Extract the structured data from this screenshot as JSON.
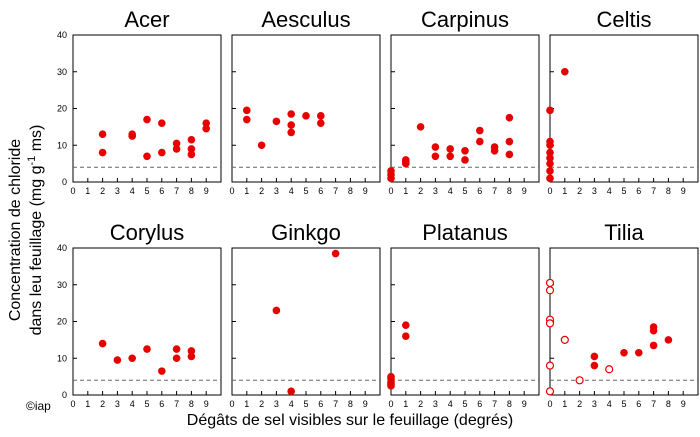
{
  "figure": {
    "ylabel_line1": "Concentration de chloride",
    "ylabel_line2_pre": "dans leu feuillage (mg g",
    "ylabel_line2_sup": "-1",
    "ylabel_line2_post": " ms)",
    "xlabel": "Dégâts de sel visibles sur le feuillage (degrés)",
    "credit": "©iap",
    "marker_color": "#e60000",
    "reference_line_color": "#666666"
  },
  "chart_data": [
    {
      "type": "scatter",
      "title": "Acer",
      "xlim": [
        0,
        10
      ],
      "ylim": [
        0,
        40
      ],
      "xticks": [
        0,
        1,
        2,
        3,
        4,
        5,
        6,
        7,
        8,
        9
      ],
      "yticks": [
        0,
        10,
        20,
        30,
        40
      ],
      "reference_line": 4,
      "points": [
        [
          2,
          13
        ],
        [
          2,
          8
        ],
        [
          4,
          13
        ],
        [
          4,
          12.5
        ],
        [
          5,
          17
        ],
        [
          5,
          7
        ],
        [
          6,
          16
        ],
        [
          6,
          8
        ],
        [
          7,
          10.5
        ],
        [
          7,
          9
        ],
        [
          8,
          11.5
        ],
        [
          8,
          9
        ],
        [
          8,
          7.5
        ],
        [
          9,
          16
        ],
        [
          9,
          14.5
        ]
      ]
    },
    {
      "type": "scatter",
      "title": "Aesculus",
      "xlim": [
        0,
        10
      ],
      "ylim": [
        0,
        40
      ],
      "xticks": [
        0,
        1,
        2,
        3,
        4,
        5,
        6,
        7,
        8,
        9
      ],
      "yticks": [
        0,
        10,
        20,
        30,
        40
      ],
      "reference_line": 4,
      "points": [
        [
          1,
          19.5
        ],
        [
          1,
          17
        ],
        [
          2,
          10
        ],
        [
          3,
          16.5
        ],
        [
          4,
          18.5
        ],
        [
          4,
          15.5
        ],
        [
          4,
          13.5
        ],
        [
          5,
          18
        ],
        [
          6,
          18
        ],
        [
          6,
          16
        ]
      ]
    },
    {
      "type": "scatter",
      "title": "Carpinus",
      "xlim": [
        0,
        10
      ],
      "ylim": [
        0,
        40
      ],
      "xticks": [
        0,
        1,
        2,
        3,
        4,
        5,
        6,
        7,
        8,
        9
      ],
      "yticks": [
        0,
        10,
        20,
        30,
        40
      ],
      "reference_line": 4,
      "points": [
        [
          0,
          3
        ],
        [
          0,
          2
        ],
        [
          0,
          1
        ],
        [
          1,
          6
        ],
        [
          1,
          5.5
        ],
        [
          1,
          5
        ],
        [
          2,
          15
        ],
        [
          3,
          9.5
        ],
        [
          3,
          7
        ],
        [
          4,
          9
        ],
        [
          4,
          7
        ],
        [
          5,
          8.5
        ],
        [
          5,
          6
        ],
        [
          6,
          14
        ],
        [
          6,
          11
        ],
        [
          7,
          9.5
        ],
        [
          7,
          8.5
        ],
        [
          8,
          17.5
        ],
        [
          8,
          11
        ],
        [
          8,
          7.5
        ]
      ]
    },
    {
      "type": "scatter",
      "title": "Celtis",
      "xlim": [
        0,
        10
      ],
      "ylim": [
        0,
        40
      ],
      "xticks": [
        0,
        1,
        2,
        3,
        4,
        5,
        6,
        7,
        8,
        9
      ],
      "yticks": [
        0,
        10,
        20,
        30,
        40
      ],
      "reference_line": 4,
      "points": [
        [
          0,
          19.5
        ],
        [
          0,
          11
        ],
        [
          0,
          10
        ],
        [
          0,
          8
        ],
        [
          0,
          6.5
        ],
        [
          0,
          5
        ],
        [
          0,
          3
        ],
        [
          0,
          1
        ],
        [
          1,
          30
        ]
      ]
    },
    {
      "type": "scatter",
      "title": "Corylus",
      "xlim": [
        0,
        10
      ],
      "ylim": [
        0,
        40
      ],
      "xticks": [
        0,
        1,
        2,
        3,
        4,
        5,
        6,
        7,
        8,
        9
      ],
      "yticks": [
        0,
        10,
        20,
        30,
        40
      ],
      "reference_line": 4,
      "points": [
        [
          2,
          14
        ],
        [
          3,
          9.5
        ],
        [
          4,
          10
        ],
        [
          5,
          12.5
        ],
        [
          6,
          6.5
        ],
        [
          7,
          12.5
        ],
        [
          7,
          10
        ],
        [
          8,
          12
        ],
        [
          8,
          10.5
        ]
      ]
    },
    {
      "type": "scatter",
      "title": "Ginkgo",
      "xlim": [
        0,
        10
      ],
      "ylim": [
        0,
        40
      ],
      "xticks": [
        0,
        1,
        2,
        3,
        4,
        5,
        6,
        7,
        8,
        9
      ],
      "yticks": [
        0,
        10,
        20,
        30,
        40
      ],
      "reference_line": 4,
      "points": [
        [
          3,
          23
        ],
        [
          4,
          1
        ],
        [
          7,
          38.5
        ]
      ]
    },
    {
      "type": "scatter",
      "title": "Platanus",
      "xlim": [
        0,
        10
      ],
      "ylim": [
        0,
        40
      ],
      "xticks": [
        0,
        1,
        2,
        3,
        4,
        5,
        6,
        7,
        8,
        9
      ],
      "yticks": [
        0,
        10,
        20,
        30,
        40
      ],
      "reference_line": 4,
      "points": [
        [
          0,
          5
        ],
        [
          0,
          4.5
        ],
        [
          0,
          3.5
        ],
        [
          0,
          3
        ],
        [
          0,
          2.5
        ],
        [
          1,
          19
        ],
        [
          1,
          16
        ]
      ]
    },
    {
      "type": "scatter",
      "title": "Tilia",
      "xlim": [
        0,
        10
      ],
      "ylim": [
        0,
        40
      ],
      "xticks": [
        0,
        1,
        2,
        3,
        4,
        5,
        6,
        7,
        8,
        9
      ],
      "yticks": [
        0,
        10,
        20,
        30,
        40
      ],
      "reference_line": 4,
      "points": [
        [
          3,
          10.5
        ],
        [
          3,
          8
        ],
        [
          5,
          11.5
        ],
        [
          6,
          11.5
        ],
        [
          7,
          18.5
        ],
        [
          7,
          17.5
        ],
        [
          7,
          13.5
        ],
        [
          8,
          15
        ]
      ],
      "open_points": [
        [
          0,
          30.5
        ],
        [
          0,
          28.5
        ],
        [
          0,
          20.5
        ],
        [
          0,
          19.5
        ],
        [
          0,
          8
        ],
        [
          0,
          1
        ],
        [
          1,
          15
        ],
        [
          2,
          4
        ],
        [
          4,
          7
        ]
      ]
    }
  ]
}
